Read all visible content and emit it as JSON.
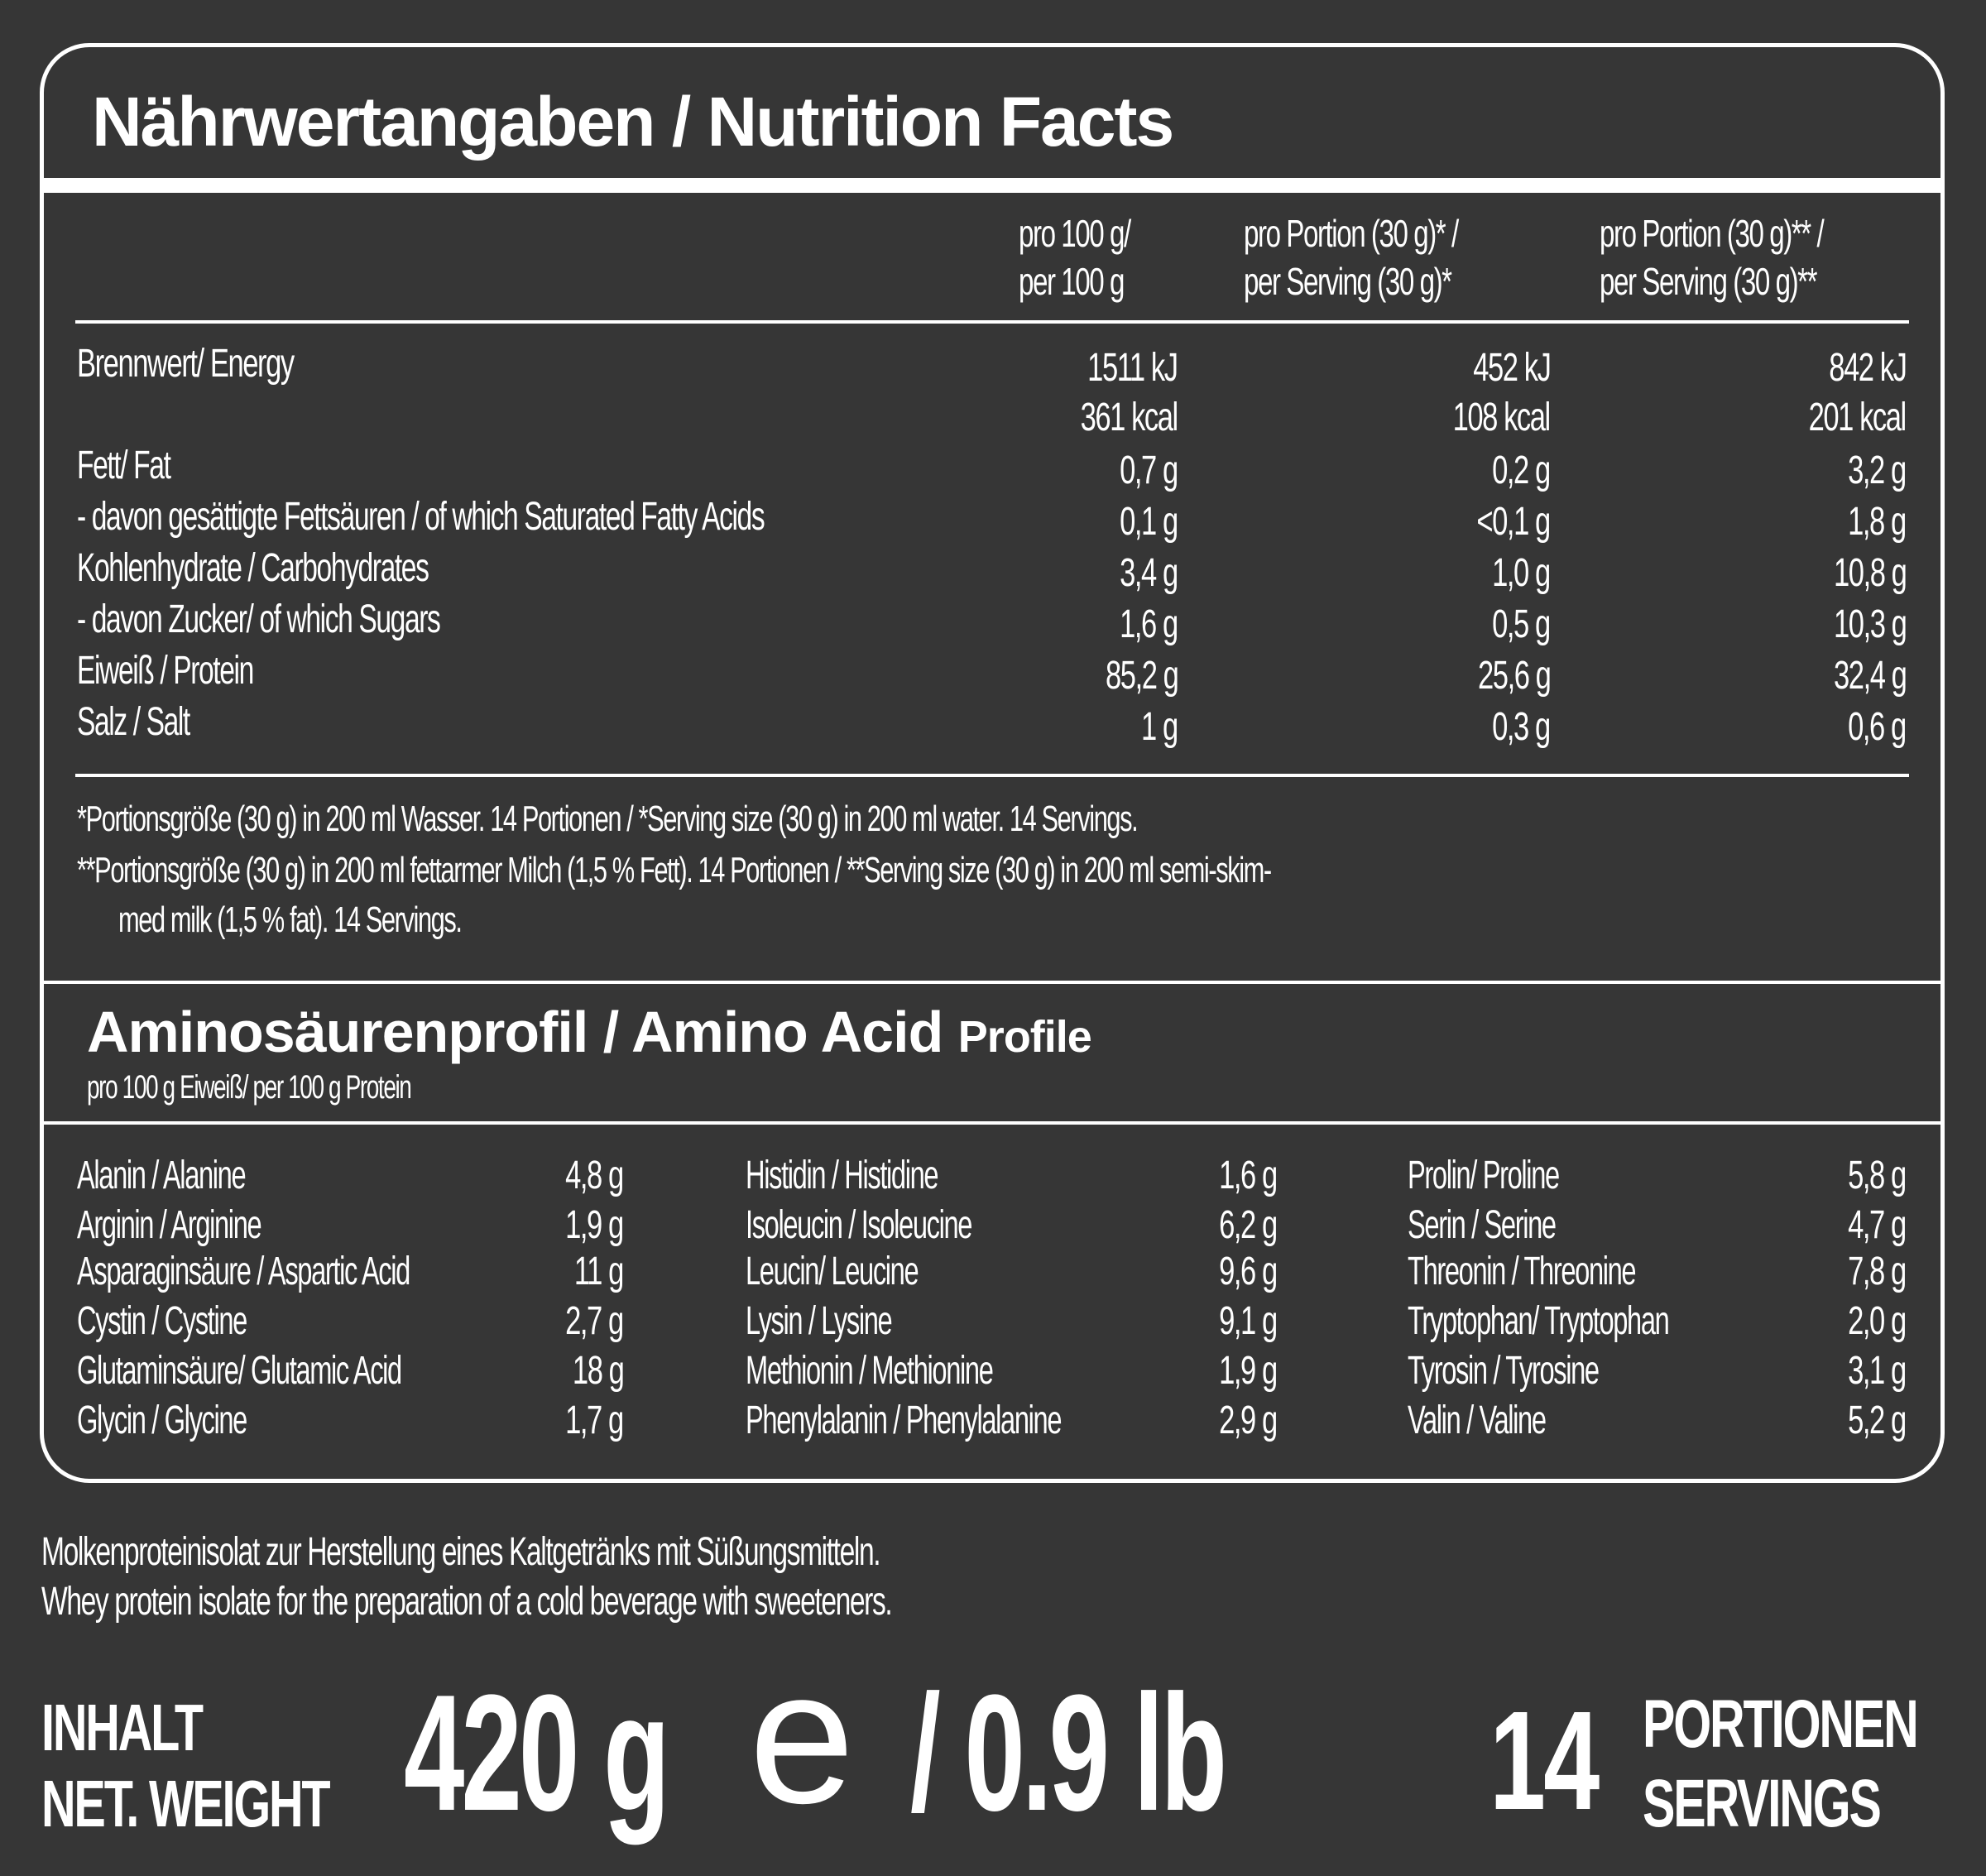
{
  "title": "Nährwertangaben / Nutrition Facts",
  "columns": [
    {
      "line1": "pro 100 g/",
      "line2": "per 100 g"
    },
    {
      "line1": "pro Portion (30 g)* /",
      "line2": "per Serving (30 g)*"
    },
    {
      "line1": "pro Portion (30 g)** /",
      "line2": "per Serving (30 g)**"
    }
  ],
  "energy": {
    "label": "Brennwert/ Energy",
    "kj": [
      "1511 kJ",
      "452 kJ",
      "842 kJ"
    ],
    "kcal": [
      "361 kcal",
      "108 kcal",
      "201 kcal"
    ]
  },
  "nutrients": [
    {
      "label": "Fett/ Fat",
      "values": [
        "0,7 g",
        "0,2 g",
        "3,2 g"
      ]
    },
    {
      "label": "- davon gesättigte Fettsäuren / of which Saturated Fatty Acids",
      "values": [
        "0,1 g",
        "<0,1 g",
        "1,8 g"
      ]
    },
    {
      "label": "Kohlenhydrate / Carbohydrates",
      "values": [
        "3,4 g",
        "1,0 g",
        "10,8 g"
      ]
    },
    {
      "label": "- davon Zucker/ of which Sugars",
      "values": [
        "1,6 g",
        "0,5 g",
        "10,3 g"
      ]
    },
    {
      "label": "Eiweiß / Protein",
      "values": [
        "85,2 g",
        "25,6 g",
        "32,4 g"
      ]
    },
    {
      "label": "Salz / Salt",
      "values": [
        "1 g",
        "0,3 g",
        "0,6 g"
      ]
    }
  ],
  "notes": {
    "line1": "*Portionsgröße (30 g) in 200 ml Wasser. 14 Portionen / *Serving size (30 g) in 200 ml water. 14 Servings.",
    "line2": "**Portionsgröße (30 g) in 200 ml fettarmer Milch (1,5 % Fett). 14 Portionen / **Serving size (30 g) in 200 ml semi-skim-",
    "line3": "med milk (1,5 % fat). 14 Servings."
  },
  "amino": {
    "title_main": "Aminosäurenprofil / Amino Acid",
    "title_small": "Profile",
    "subtitle": "pro 100 g Eiweiß/ per 100 g Protein",
    "col1": [
      {
        "name": "Alanin / Alanine",
        "value": "4,8 g"
      },
      {
        "name": "Arginin / Arginine",
        "value": "1,9 g"
      },
      {
        "name": "Asparaginsäure / Aspartic Acid",
        "value": "11 g"
      },
      {
        "name": "Cystin / Cystine",
        "value": "2,7 g"
      },
      {
        "name": "Glutaminsäure/ Glutamic Acid",
        "value": "18 g"
      },
      {
        "name": "Glycin / Glycine",
        "value": "1,7 g"
      }
    ],
    "col2": [
      {
        "name": "Histidin / Histidine",
        "value": "1,6 g"
      },
      {
        "name": "Isoleucin / Isoleucine",
        "value": "6,2 g"
      },
      {
        "name": "Leucin/ Leucine",
        "value": "9,6 g"
      },
      {
        "name": "Lysin / Lysine",
        "value": "9,1 g"
      },
      {
        "name": "Methionin / Methionine",
        "value": "1,9 g"
      },
      {
        "name": "Phenylalanin / Phenylalanine",
        "value": "2,9 g"
      }
    ],
    "col3": [
      {
        "name": "Prolin/ Proline",
        "value": "5,8 g"
      },
      {
        "name": "Serin / Serine",
        "value": "4,7 g"
      },
      {
        "name": "Threonin / Threonine",
        "value": "7,8 g"
      },
      {
        "name": "Tryptophan/ Tryptophan",
        "value": "2,0 g"
      },
      {
        "name": "Tyrosin / Tyrosine",
        "value": "3,1 g"
      },
      {
        "name": "Valin / Valine",
        "value": "5,2 g"
      }
    ]
  },
  "description": {
    "de": "Molkenproteinisolat zur Herstellung eines Kaltgetränks mit Süßungsmitteln.",
    "en": "Whey protein isolate for the preparation of a cold beverage with sweeteners."
  },
  "footer": {
    "label_de": "INHALT",
    "label_en": "NET. WEIGHT",
    "weight": "420 g",
    "estimate_mark": "e",
    "weight_lb": "/ 0.9 lb",
    "servings_count": "14",
    "servings_de": "PORTIONEN",
    "servings_en": "SERVINGS"
  },
  "colors": {
    "background": "#363636",
    "text": "#ffffff"
  }
}
